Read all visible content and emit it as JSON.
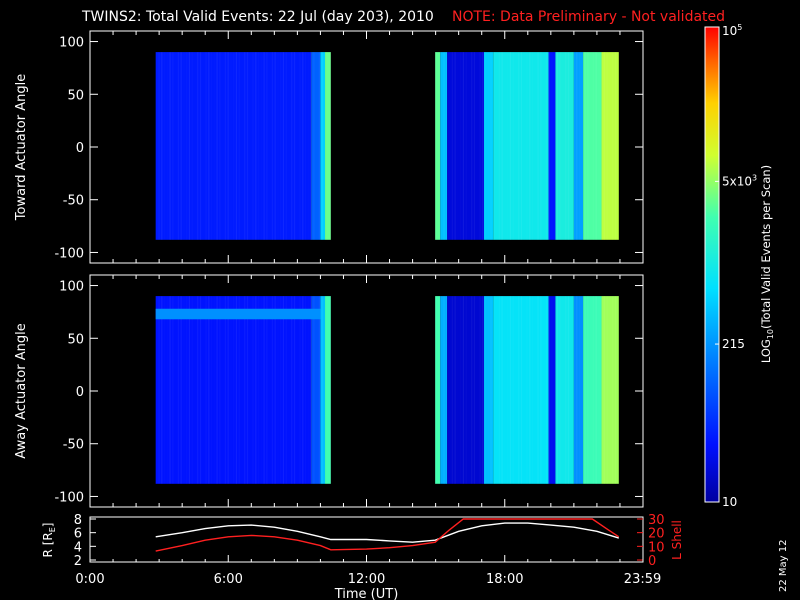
{
  "header": {
    "title": "TWINS2: Total Valid Events: 22 Jul (day 203), 2010",
    "note": "NOTE: Data Preliminary - Not validated",
    "title_color": "#ffffff",
    "note_color": "#ff2020"
  },
  "side_stamp": "22 May 12",
  "chart_data": [
    {
      "id": "toward",
      "type": "heatmap",
      "ylabel": "Toward Actuator Angle",
      "ylim": [
        -110,
        110
      ],
      "yticks": [
        "100",
        "50",
        "0",
        "-50",
        "-100"
      ],
      "ytick_values": [
        100,
        50,
        0,
        -50,
        -100
      ],
      "xlim_hours": [
        0,
        24
      ],
      "angle_range": [
        -88,
        90
      ],
      "segments": [
        {
          "start_h": 2.85,
          "end_h": 10.45
        },
        {
          "start_h": 14.98,
          "end_h": 22.95
        }
      ],
      "log_value_columns": [
        {
          "start_h": 2.85,
          "end_h": 9.6,
          "log": 1.55
        },
        {
          "start_h": 9.6,
          "end_h": 10.0,
          "log": 2.0
        },
        {
          "start_h": 10.0,
          "end_h": 10.2,
          "log": 2.7
        },
        {
          "start_h": 10.2,
          "end_h": 10.45,
          "log": 3.55
        },
        {
          "start_h": 14.98,
          "end_h": 15.2,
          "log": 3.5
        },
        {
          "start_h": 15.2,
          "end_h": 15.5,
          "log": 2.6
        },
        {
          "start_h": 15.5,
          "end_h": 17.1,
          "log": 1.3
        },
        {
          "start_h": 17.1,
          "end_h": 17.5,
          "log": 2.7
        },
        {
          "start_h": 17.5,
          "end_h": 19.9,
          "log": 2.95
        },
        {
          "start_h": 19.9,
          "end_h": 20.2,
          "log": 1.5
        },
        {
          "start_h": 20.2,
          "end_h": 21.0,
          "log": 3.05
        },
        {
          "start_h": 21.0,
          "end_h": 21.4,
          "log": 2.4
        },
        {
          "start_h": 21.4,
          "end_h": 22.2,
          "log": 3.45
        },
        {
          "start_h": 22.2,
          "end_h": 22.95,
          "log": 3.85
        }
      ]
    },
    {
      "id": "away",
      "type": "heatmap",
      "ylabel": "Away Actuator Angle",
      "ylim": [
        -110,
        110
      ],
      "yticks": [
        "100",
        "50",
        "0",
        "-50",
        "-100"
      ],
      "ytick_values": [
        100,
        50,
        0,
        -50,
        -100
      ],
      "xlim_hours": [
        0,
        24
      ],
      "angle_range": [
        -88,
        90
      ],
      "segments": [
        {
          "start_h": 2.85,
          "end_h": 10.45
        },
        {
          "start_h": 14.98,
          "end_h": 22.95
        }
      ],
      "highlight_band": {
        "start_h": 2.85,
        "end_h": 10.0,
        "angle_from": 68,
        "angle_to": 78,
        "log": 2.3
      },
      "log_value_columns": [
        {
          "start_h": 2.85,
          "end_h": 9.6,
          "log": 1.5
        },
        {
          "start_h": 9.6,
          "end_h": 10.0,
          "log": 1.9
        },
        {
          "start_h": 10.0,
          "end_h": 10.2,
          "log": 2.6
        },
        {
          "start_h": 10.2,
          "end_h": 10.45,
          "log": 3.4
        },
        {
          "start_h": 14.98,
          "end_h": 15.2,
          "log": 3.4
        },
        {
          "start_h": 15.2,
          "end_h": 15.5,
          "log": 2.5
        },
        {
          "start_h": 15.5,
          "end_h": 17.1,
          "log": 1.25
        },
        {
          "start_h": 17.1,
          "end_h": 17.5,
          "log": 2.6
        },
        {
          "start_h": 17.5,
          "end_h": 19.9,
          "log": 2.85
        },
        {
          "start_h": 19.9,
          "end_h": 20.2,
          "log": 1.4
        },
        {
          "start_h": 20.2,
          "end_h": 21.0,
          "log": 2.95
        },
        {
          "start_h": 21.0,
          "end_h": 21.4,
          "log": 2.3
        },
        {
          "start_h": 21.4,
          "end_h": 22.2,
          "log": 3.35
        },
        {
          "start_h": 22.2,
          "end_h": 22.95,
          "log": 3.75
        }
      ]
    },
    {
      "id": "orbit",
      "type": "line",
      "ylabel_left": "R [R",
      "ylabel_left_sub": "E",
      "ylabel_left_end": "]",
      "ylabel_right": "L Shell",
      "ylim_left": [
        2,
        8
      ],
      "yticks_left": [
        "8",
        "6",
        "4",
        "2"
      ],
      "ytick_left_values": [
        8,
        6,
        4,
        2
      ],
      "ylim_right": [
        0,
        30
      ],
      "yticks_right": [
        "30",
        "20",
        "10",
        "0"
      ],
      "ytick_right_values": [
        30,
        20,
        10,
        0
      ],
      "xlabel": "Time (UT)",
      "xticks": [
        "0:00",
        "6:00",
        "12:00",
        "18:00",
        "23:59"
      ],
      "xtick_hours": [
        0,
        6,
        12,
        18,
        23.98
      ],
      "series": [
        {
          "color": "#ffffff",
          "axis": "left",
          "x": [
            2.85,
            4,
            5,
            6,
            7,
            8,
            9,
            10.0,
            10.45,
            12,
            13,
            14,
            14.98,
            16,
            17,
            18,
            19,
            20,
            21,
            22,
            22.95
          ],
          "y": [
            5.4,
            6.0,
            6.6,
            7.0,
            7.1,
            6.8,
            6.2,
            5.4,
            5.0,
            5.0,
            4.8,
            4.6,
            4.9,
            6.2,
            7.0,
            7.4,
            7.4,
            7.1,
            6.8,
            6.2,
            5.2
          ]
        },
        {
          "color": "#ff2020",
          "axis": "right",
          "x": [
            2.85,
            4,
            5,
            6,
            7,
            8,
            9,
            10.0,
            10.45,
            12,
            13,
            14,
            14.98,
            15.6,
            16.2,
            21.8,
            22.5,
            22.95
          ],
          "y": [
            6.5,
            10.5,
            14.5,
            17.0,
            18.0,
            17.0,
            14.5,
            10.5,
            7.5,
            8.0,
            9.0,
            10.5,
            13.0,
            22.0,
            30.0,
            30.0,
            22.0,
            17.0
          ]
        }
      ]
    }
  ],
  "colorbar": {
    "label": "LOG",
    "label_sub": "10",
    "label_rest": "(Total Valid Events per Scan)",
    "log_range": [
      1,
      5
    ],
    "ticks": [
      {
        "text": "10",
        "log": 1
      },
      {
        "text": "215",
        "log": 2.33
      },
      {
        "text": "5x10",
        "sup": "3",
        "log": 3.7
      },
      {
        "text": "10",
        "sup": "5",
        "log": 5
      }
    ]
  }
}
